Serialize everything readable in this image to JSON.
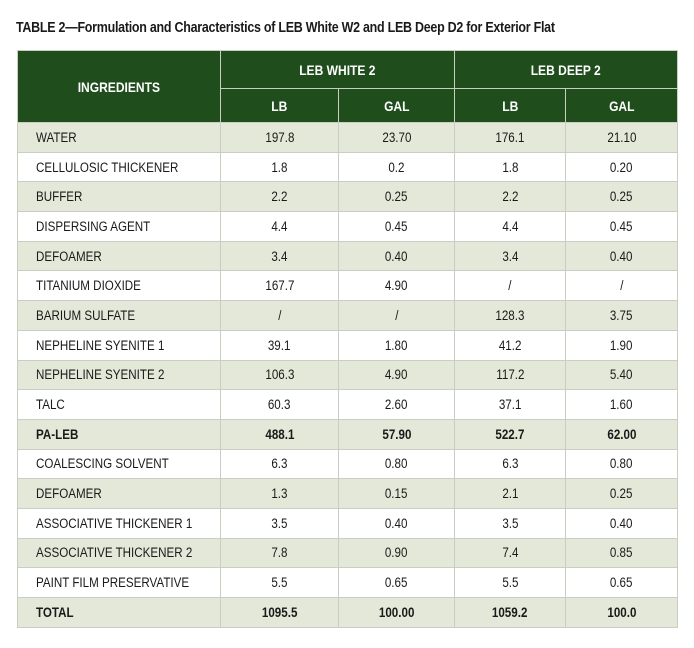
{
  "caption": "TABLE 2—Formulation and Characteristics of LEB White W2 and LEB Deep D2 for Exterior Flat",
  "header": {
    "ingredients": "INGREDIENTS",
    "group1": "LEB WHITE 2",
    "group2": "LEB DEEP 2",
    "lb": "LB",
    "gal": "GAL"
  },
  "rows": [
    [
      "WATER",
      "197.8",
      "23.70",
      "176.1",
      "21.10"
    ],
    [
      "CELLULOSIC THICKENER",
      "1.8",
      "0.2",
      "1.8",
      "0.20"
    ],
    [
      "BUFFER",
      "2.2",
      "0.25",
      "2.2",
      "0.25"
    ],
    [
      "DISPERSING AGENT",
      "4.4",
      "0.45",
      "4.4",
      "0.45"
    ],
    [
      "DEFOAMER",
      "3.4",
      "0.40",
      "3.4",
      "0.40"
    ],
    [
      "TITANIUM DIOXIDE",
      "167.7",
      "4.90",
      "/",
      "/"
    ],
    [
      "BARIUM SULFATE",
      "/",
      "/",
      "128.3",
      "3.75"
    ],
    [
      "NEPHELINE SYENITE 1",
      "39.1",
      "1.80",
      "41.2",
      "1.90"
    ],
    [
      "NEPHELINE SYENITE 2",
      "106.3",
      "4.90",
      "117.2",
      "5.40"
    ],
    [
      "TALC",
      "60.3",
      "2.60",
      "37.1",
      "1.60"
    ],
    [
      "PA-LEB",
      "488.1",
      "57.90",
      "522.7",
      "62.00"
    ],
    [
      "COALESCING SOLVENT",
      "6.3",
      "0.80",
      "6.3",
      "0.80"
    ],
    [
      "DEFOAMER",
      "1.3",
      "0.15",
      "2.1",
      "0.25"
    ],
    [
      "ASSOCIATIVE THICKENER 1",
      "3.5",
      "0.40",
      "3.5",
      "0.40"
    ],
    [
      "ASSOCIATIVE THICKENER 2",
      "7.8",
      "0.90",
      "7.4",
      "0.85"
    ],
    [
      "PAINT FILM PRESERVATIVE",
      "5.5",
      "0.65",
      "5.5",
      "0.65"
    ],
    [
      "TOTAL",
      "1095.5",
      "100.00",
      "1059.2",
      "100.0"
    ]
  ],
  "bold_rows": [
    10,
    16
  ],
  "colors": {
    "header_green": "#1f4d1c",
    "stripe": "#e3e8d8",
    "grid": "#c9cdc2"
  }
}
